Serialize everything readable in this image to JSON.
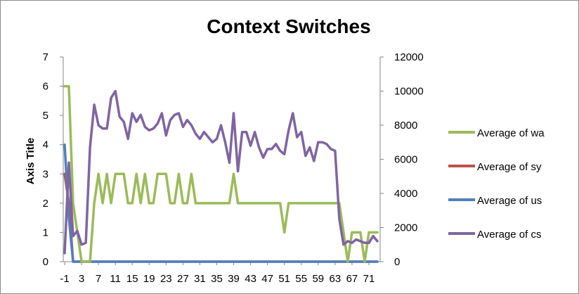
{
  "chart_data": {
    "type": "line",
    "title": "Context Switches",
    "ylabel": "Axis Title",
    "xlabel": "",
    "x": [
      -1,
      0,
      1,
      2,
      3,
      4,
      5,
      6,
      7,
      8,
      9,
      10,
      11,
      12,
      13,
      14,
      15,
      16,
      17,
      18,
      19,
      20,
      21,
      22,
      23,
      24,
      25,
      26,
      27,
      28,
      29,
      30,
      31,
      32,
      33,
      34,
      35,
      36,
      37,
      38,
      39,
      40,
      41,
      42,
      43,
      44,
      45,
      46,
      47,
      48,
      49,
      50,
      51,
      52,
      53,
      54,
      55,
      56,
      57,
      58,
      59,
      60,
      61,
      62,
      63,
      64,
      65,
      66,
      67,
      68,
      69,
      70,
      71,
      72,
      73
    ],
    "x_tick_labels": [
      "-1",
      "3",
      "7",
      "11",
      "15",
      "19",
      "23",
      "27",
      "31",
      "35",
      "39",
      "43",
      "47",
      "51",
      "55",
      "59",
      "63",
      "67",
      "71"
    ],
    "ylim": [
      0,
      7
    ],
    "y_ticks": [
      0,
      1,
      2,
      3,
      4,
      5,
      6,
      7
    ],
    "y2lim": [
      0,
      12000
    ],
    "y2_ticks": [
      0,
      2000,
      4000,
      6000,
      8000,
      10000,
      12000
    ],
    "legend_position": "right",
    "grid": false,
    "series": [
      {
        "name": "Average of wa",
        "axis": "left",
        "color": "#9bbb59",
        "values": [
          6,
          6,
          2,
          1,
          0,
          0,
          0,
          2,
          3,
          2,
          3,
          2,
          3,
          3,
          3,
          2,
          2,
          3,
          2,
          3,
          2,
          2,
          3,
          3,
          3,
          2,
          2,
          3,
          2,
          2,
          3,
          2,
          2,
          2,
          2,
          2,
          2,
          2,
          2,
          2,
          3,
          2,
          2,
          2,
          2,
          2,
          2,
          2,
          2,
          2,
          2,
          2,
          1,
          2,
          2,
          2,
          2,
          2,
          2,
          2,
          2,
          2,
          2,
          2,
          2,
          2,
          1,
          0,
          1,
          1,
          1,
          0,
          1,
          1,
          1
        ]
      },
      {
        "name": "Average of sy",
        "axis": "left",
        "color": "#c0504d",
        "values": [
          3,
          2,
          0,
          0,
          0,
          0,
          0,
          0,
          0,
          0,
          0,
          0,
          0,
          0,
          0,
          0,
          0,
          0,
          0,
          0,
          0,
          0,
          0,
          0,
          0,
          0,
          0,
          0,
          0,
          0,
          0,
          0,
          0,
          0,
          0,
          0,
          0,
          0,
          0,
          0,
          0,
          0,
          0,
          0,
          0,
          0,
          0,
          0,
          0,
          0,
          0,
          0,
          0,
          0,
          0,
          0,
          0,
          0,
          0,
          0,
          0,
          0,
          0,
          0,
          0,
          0,
          0,
          0,
          0,
          0,
          0,
          0,
          0,
          0,
          0
        ]
      },
      {
        "name": "Average of us",
        "axis": "left",
        "color": "#4f81bd",
        "values": [
          4,
          1.5,
          0,
          0,
          0,
          0,
          0,
          0,
          0,
          0,
          0,
          0,
          0,
          0,
          0,
          0,
          0,
          0,
          0,
          0,
          0,
          0,
          0,
          0,
          0,
          0,
          0,
          0,
          0,
          0,
          0,
          0,
          0,
          0,
          0,
          0,
          0,
          0,
          0,
          0,
          0,
          0,
          0,
          0,
          0,
          0,
          0,
          0,
          0,
          0,
          0,
          0,
          0,
          0,
          0,
          0,
          0,
          0,
          0,
          0,
          0,
          0,
          0,
          0,
          0,
          0,
          0,
          0,
          0,
          0,
          0,
          0,
          0,
          0,
          0
        ]
      },
      {
        "name": "Average of cs",
        "axis": "right",
        "color": "#8064a2",
        "values": [
          500,
          5800,
          1500,
          1800,
          1000,
          1100,
          6700,
          9200,
          8000,
          7800,
          7800,
          9600,
          10000,
          8500,
          8200,
          7200,
          8700,
          8200,
          8600,
          7900,
          7700,
          7800,
          8100,
          8700,
          7400,
          8300,
          8600,
          8700,
          7900,
          8300,
          8000,
          7500,
          7200,
          7600,
          7300,
          7000,
          7200,
          8000,
          7000,
          5800,
          8700,
          5300,
          7600,
          7600,
          6800,
          7600,
          6700,
          6100,
          6600,
          6600,
          6900,
          6500,
          6300,
          7700,
          8700,
          7300,
          7600,
          6200,
          6700,
          5900,
          7000,
          7000,
          6900,
          6600,
          6500,
          2500,
          1000,
          1200,
          1100,
          1300,
          1200,
          1100,
          1100,
          1500,
          1200
        ]
      }
    ]
  }
}
